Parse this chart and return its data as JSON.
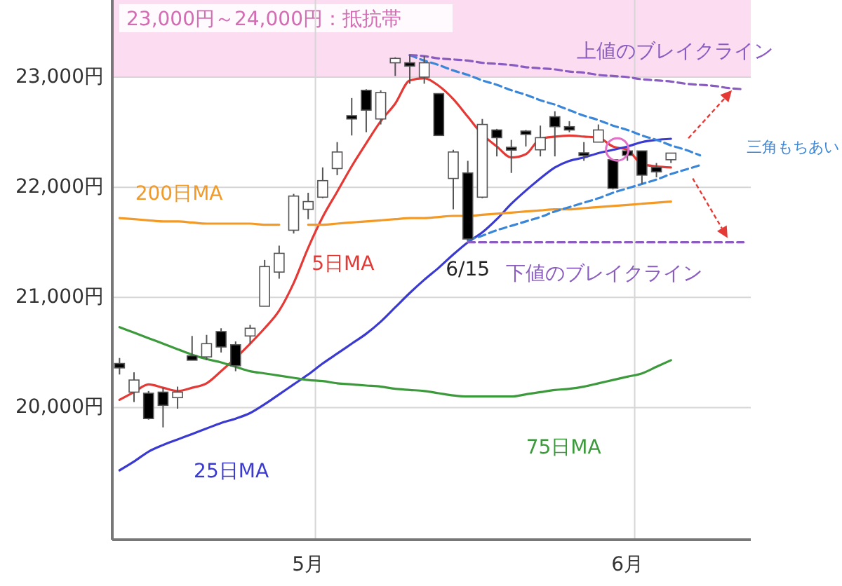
{
  "chart_data": {
    "type": "candlestick",
    "categories": [
      null,
      null,
      null,
      null,
      null,
      null,
      null,
      null,
      null,
      null,
      null,
      null,
      null,
      "5月",
      null,
      null,
      null,
      null,
      null,
      null,
      null,
      null,
      null,
      null,
      null,
      null,
      null,
      null,
      null,
      null,
      null,
      null,
      null,
      null,
      null,
      "6月",
      null,
      null,
      null,
      null,
      null,
      null,
      null,
      null
    ],
    "ohlc": [
      [
        20400,
        20450,
        20300,
        20360
      ],
      [
        20140,
        20320,
        20050,
        20250
      ],
      [
        20130,
        20150,
        19890,
        19900
      ],
      [
        20140,
        20180,
        19820,
        20020
      ],
      [
        20090,
        20190,
        19990,
        20140
      ],
      [
        20470,
        20650,
        20430,
        20430
      ],
      [
        20460,
        20660,
        20430,
        20580
      ],
      [
        20690,
        20720,
        20500,
        20550
      ],
      [
        20570,
        20600,
        20330,
        20380
      ],
      [
        20650,
        20750,
        20580,
        20720
      ],
      [
        20920,
        21340,
        20920,
        21280
      ],
      [
        21230,
        21470,
        21170,
        21400
      ],
      [
        21610,
        21940,
        21580,
        21920
      ],
      [
        21800,
        21950,
        21710,
        21870
      ],
      [
        21910,
        22180,
        21900,
        22060
      ],
      [
        22170,
        22410,
        22110,
        22320
      ],
      [
        22650,
        22810,
        22470,
        22620
      ],
      [
        22880,
        22890,
        22500,
        22700
      ],
      [
        22620,
        22880,
        22570,
        22860
      ],
      [
        23130,
        23180,
        23010,
        23170
      ],
      [
        23130,
        23200,
        22940,
        23100
      ],
      [
        23000,
        23190,
        22940,
        23130
      ],
      [
        22850,
        22850,
        22470,
        22470
      ],
      [
        22080,
        22340,
        21800,
        22320
      ],
      [
        22130,
        22240,
        21520,
        21530
      ],
      [
        21910,
        22620,
        21900,
        22570
      ],
      [
        22520,
        22530,
        22280,
        22450
      ],
      [
        22360,
        22430,
        22130,
        22340
      ],
      [
        22510,
        22520,
        22370,
        22480
      ],
      [
        22340,
        22560,
        22280,
        22450
      ],
      [
        22640,
        22690,
        22280,
        22550
      ],
      [
        22550,
        22600,
        22500,
        22520
      ],
      [
        22310,
        22410,
        22240,
        22290
      ],
      [
        22410,
        22570,
        22410,
        22520
      ],
      [
        22250,
        22250,
        21980,
        21990
      ],
      [
        22330,
        22360,
        22240,
        22290
      ],
      [
        22330,
        22330,
        22030,
        22110
      ],
      [
        22180,
        22220,
        22090,
        22140
      ],
      [
        22250,
        22310,
        22220,
        22310
      ],
      null,
      null,
      null,
      null,
      null
    ],
    "series": [
      {
        "name": "5日MA",
        "type": "line",
        "color": "#e53935",
        "values": [
          20070,
          20140,
          20210,
          20180,
          20150,
          20180,
          20220,
          20330,
          20450,
          20580,
          20720,
          20880,
          21130,
          21450,
          21730,
          21960,
          22190,
          22400,
          22600,
          22760,
          22970,
          22990,
          22920,
          22800,
          22640,
          22480,
          22370,
          22270,
          22300,
          22440,
          22460,
          22470,
          22460,
          22450,
          22370,
          22340,
          22210,
          22190,
          22180,
          null,
          null,
          null,
          null,
          null
        ]
      },
      {
        "name": "25日MA",
        "type": "line",
        "color": "#3a3ad0",
        "values": [
          19430,
          19510,
          19600,
          19660,
          19710,
          19760,
          19810,
          19860,
          19900,
          19950,
          20030,
          20120,
          20210,
          20300,
          20400,
          20490,
          20580,
          20670,
          20780,
          20910,
          21040,
          21160,
          21270,
          21390,
          21500,
          21590,
          21710,
          21850,
          21970,
          22080,
          22180,
          22240,
          22270,
          22310,
          22340,
          22370,
          22410,
          22430,
          22440,
          null,
          null,
          null,
          null,
          null
        ]
      },
      {
        "name": "75日MA",
        "type": "line",
        "color": "#3c9a3c",
        "values": [
          20730,
          20680,
          20630,
          20580,
          20530,
          20480,
          20440,
          20410,
          20370,
          20330,
          20310,
          20290,
          20270,
          20250,
          20240,
          20220,
          20210,
          20200,
          20190,
          20170,
          20160,
          20150,
          20130,
          20110,
          20100,
          20100,
          20100,
          20100,
          20120,
          20140,
          20160,
          20170,
          20190,
          20220,
          20250,
          20280,
          20310,
          20370,
          20430,
          null,
          null,
          null,
          null,
          null
        ]
      },
      {
        "name": "200日MA",
        "type": "line",
        "color": "#f39a26",
        "values": [
          21720,
          21710,
          21700,
          21690,
          21690,
          21680,
          21670,
          21670,
          21670,
          21670,
          21660,
          21660,
          null,
          21660,
          21660,
          21670,
          21680,
          21690,
          21700,
          21710,
          21720,
          21720,
          21730,
          21740,
          21740,
          21750,
          21760,
          21770,
          21780,
          21790,
          21800,
          21800,
          21810,
          21820,
          21830,
          21840,
          21850,
          21860,
          21870,
          null,
          null,
          null,
          null,
          null
        ]
      },
      {
        "type": "line",
        "color": "#3a86d8",
        "line_style": "dashed",
        "values": [
          null,
          null,
          null,
          null,
          null,
          null,
          null,
          null,
          null,
          null,
          null,
          null,
          null,
          null,
          null,
          null,
          null,
          null,
          null,
          null,
          23200,
          23150,
          23110,
          23060,
          23020,
          22970,
          22930,
          22880,
          22840,
          22790,
          22750,
          22700,
          22650,
          22610,
          22560,
          22520,
          22470,
          22430,
          22380,
          22340,
          22290,
          null,
          null,
          null
        ]
      },
      {
        "type": "line",
        "color": "#3a86d8",
        "line_style": "dashed",
        "values": [
          null,
          null,
          null,
          null,
          null,
          null,
          null,
          null,
          null,
          null,
          null,
          null,
          null,
          null,
          null,
          null,
          null,
          null,
          null,
          null,
          null,
          null,
          null,
          null,
          21520,
          21560,
          21610,
          21650,
          21690,
          21730,
          21780,
          21820,
          21860,
          21900,
          21950,
          21990,
          22030,
          22070,
          22120,
          22160,
          22200,
          null,
          null,
          null
        ]
      },
      {
        "name": "上値のブレイクライン",
        "type": "line",
        "color": "#8a5cc0",
        "line_style": "dashed",
        "values": [
          null,
          null,
          null,
          null,
          null,
          null,
          null,
          null,
          null,
          null,
          null,
          null,
          null,
          null,
          null,
          null,
          null,
          null,
          null,
          null,
          23200,
          23190,
          23170,
          23160,
          23150,
          23130,
          23120,
          23110,
          23090,
          23080,
          23070,
          23050,
          23040,
          23020,
          23010,
          23000,
          22980,
          22970,
          22960,
          22940,
          22930,
          22920,
          22900,
          22890
        ]
      },
      {
        "name": "下値のブレイクライン",
        "type": "line",
        "color": "#8a5cc0",
        "line_style": "dashed",
        "values": [
          null,
          null,
          null,
          null,
          null,
          null,
          null,
          null,
          null,
          null,
          null,
          null,
          null,
          null,
          null,
          null,
          null,
          null,
          null,
          null,
          null,
          null,
          null,
          null,
          21500,
          21500,
          21500,
          21500,
          21500,
          21500,
          21500,
          21500,
          21500,
          21500,
          21500,
          21500,
          21500,
          21500,
          21500,
          21500,
          21500,
          21500,
          21500,
          21500
        ]
      }
    ],
    "ylim": [
      18800,
      23700
    ],
    "yticks": [
      {
        "value": 20000,
        "label": "20,000円"
      },
      {
        "value": 21000,
        "label": "21,000円"
      },
      {
        "value": 22000,
        "label": "22,000円"
      },
      {
        "value": 23000,
        "label": "23,000円"
      }
    ],
    "grid": true,
    "bands": [
      {
        "axis": "y",
        "from": 23000,
        "to": 23700,
        "label": "23,000円～24,000円：抵抗帯",
        "color": "#fbdcf1"
      }
    ],
    "annotations": [
      "三角もちあい",
      "6/15"
    ]
  }
}
